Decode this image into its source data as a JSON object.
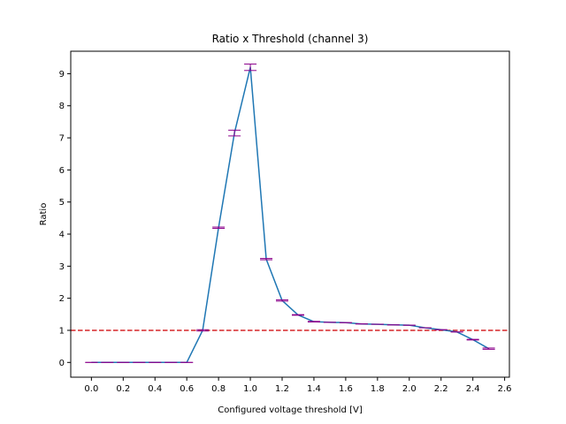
{
  "chart_data": {
    "type": "line",
    "title": "Ratio x Threshold (channel 3)",
    "xlabel": "Configured voltage threshold [V]",
    "ylabel": "Ratio",
    "xlim": [
      -0.13,
      2.63
    ],
    "ylim": [
      -0.46,
      9.7
    ],
    "x_ticks": [
      0.0,
      0.2,
      0.4,
      0.6,
      0.8,
      1.0,
      1.2,
      1.4,
      1.6,
      1.8,
      2.0,
      2.2,
      2.4,
      2.6
    ],
    "x_tick_labels": [
      "0.0",
      "0.2",
      "0.4",
      "0.6",
      "0.8",
      "1.0",
      "1.2",
      "1.4",
      "1.6",
      "1.8",
      "2.0",
      "2.2",
      "2.4",
      "2.6"
    ],
    "y_ticks": [
      0,
      1,
      2,
      3,
      4,
      5,
      6,
      7,
      8,
      9
    ],
    "y_tick_labels": [
      "0",
      "1",
      "2",
      "3",
      "4",
      "5",
      "6",
      "7",
      "8",
      "9"
    ],
    "grid": false,
    "series": [
      {
        "color": "#1f77b4",
        "error_bar_color": "#8b008b",
        "x": [
          0.0,
          0.1,
          0.2,
          0.3,
          0.4,
          0.5,
          0.6,
          0.7,
          0.8,
          0.9,
          1.0,
          1.1,
          1.2,
          1.3,
          1.4,
          1.5,
          1.6,
          1.7,
          1.8,
          1.9,
          2.0,
          2.1,
          2.2,
          2.3,
          2.4,
          2.5
        ],
        "y": [
          0.0,
          0.0,
          0.0,
          0.0,
          0.0,
          0.0,
          0.0,
          1.0,
          4.2,
          7.15,
          9.2,
          3.22,
          1.93,
          1.48,
          1.27,
          1.25,
          1.24,
          1.2,
          1.19,
          1.17,
          1.16,
          1.08,
          1.02,
          0.95,
          0.71,
          0.43
        ],
        "yerr": [
          0.0,
          0.0,
          0.0,
          0.0,
          0.0,
          0.0,
          0.0,
          0.02,
          0.02,
          0.09,
          0.1,
          0.02,
          0.02,
          0.01,
          0.01,
          0.0,
          0.0,
          0.0,
          0.0,
          0.0,
          0.0,
          0.0,
          0.0,
          0.0,
          0.01,
          0.02
        ]
      }
    ],
    "reference_lines": [
      {
        "orientation": "horizontal",
        "y": 1.0,
        "color": "#d62728",
        "style": "dashed"
      }
    ]
  }
}
